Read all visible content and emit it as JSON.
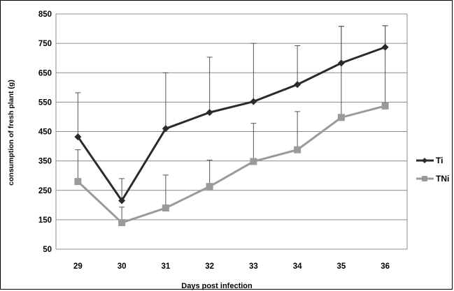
{
  "chart_data": {
    "type": "line",
    "title": "",
    "xlabel": "Days post infection",
    "ylabel": "consumption of fresh plant (g)",
    "categories": [
      "29",
      "30",
      "31",
      "32",
      "33",
      "34",
      "35",
      "36"
    ],
    "ylim": [
      50,
      850
    ],
    "yticks": [
      "850",
      "750",
      "650",
      "550",
      "450",
      "350",
      "250",
      "150",
      "50"
    ],
    "grid": true,
    "legend": "right",
    "series": [
      {
        "name": "Ti",
        "color": "#2b2b2b",
        "marker": "diamond",
        "values": [
          432,
          215,
          460,
          515,
          552,
          610,
          683,
          737
        ],
        "error_upper": [
          582,
          290,
          650,
          703,
          750,
          742,
          808,
          810
        ]
      },
      {
        "name": "TNi",
        "color": "#9a9a9a",
        "marker": "square",
        "values": [
          280,
          140,
          190,
          263,
          348,
          388,
          498,
          537
        ],
        "error_upper": [
          388,
          193,
          302,
          353,
          478,
          518,
          808,
          810
        ]
      }
    ]
  }
}
